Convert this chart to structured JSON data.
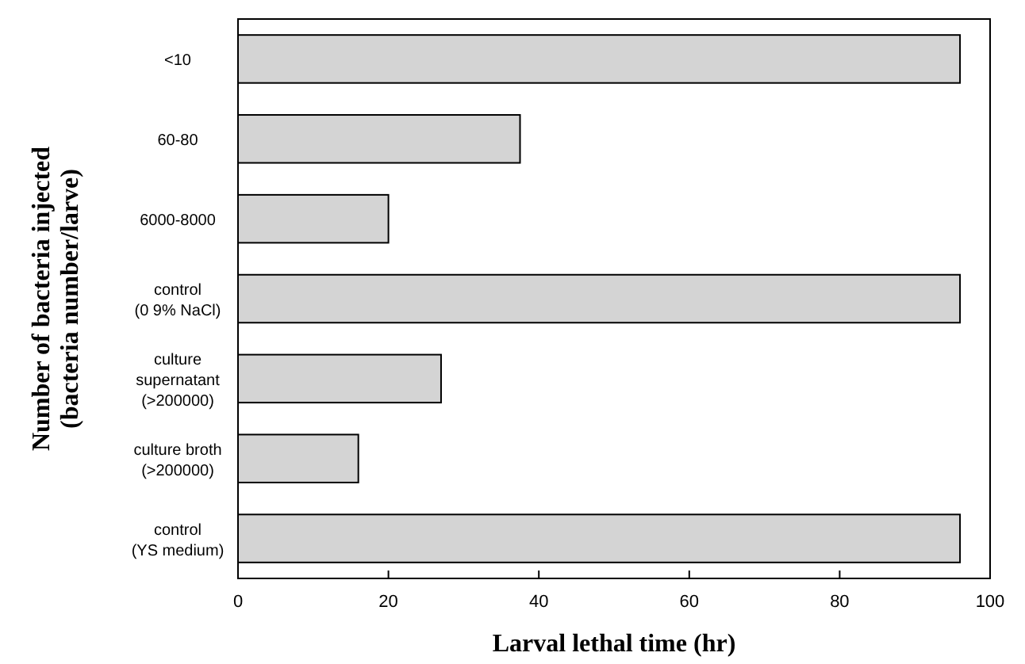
{
  "chart_data": {
    "type": "bar",
    "orientation": "horizontal",
    "xlabel": "Larval lethal time (hr)",
    "ylabel": "Number of bacteria injected\n(bacteria number/larve)",
    "categories": [
      "<10",
      "60-80",
      "6000-8000",
      "control\n(0 9% NaCl)",
      "culture\nsupernatant\n(>200000)",
      "culture broth\n(>200000)",
      "control\n(YS medium)"
    ],
    "values": [
      96,
      37.5,
      20,
      96,
      27,
      16,
      96
    ],
    "color": "#d4d4d4",
    "xlim": [
      0,
      100
    ],
    "xticks": [
      0,
      20,
      40,
      60,
      80,
      100
    ],
    "grid": false
  }
}
